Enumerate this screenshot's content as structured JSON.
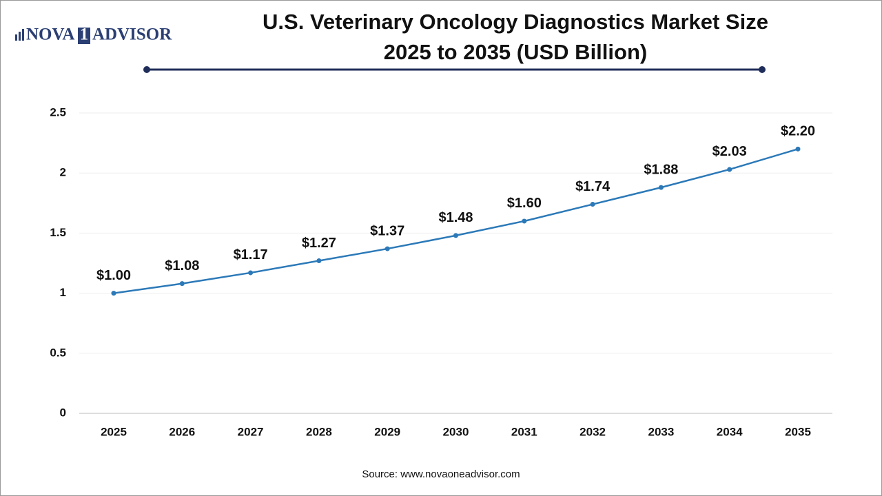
{
  "logo": [
    "NOVA",
    "1",
    "ADVISOR"
  ],
  "chart_data": {
    "type": "line",
    "title": [
      "U.S. Veterinary Oncology Diagnostics Market Size",
      "2025 to 2035 (USD Billion)"
    ],
    "categories": [
      "2025",
      "2026",
      "2027",
      "2028",
      "2029",
      "2030",
      "2031",
      "2032",
      "2033",
      "2034",
      "2035"
    ],
    "values": [
      1.0,
      1.08,
      1.17,
      1.27,
      1.37,
      1.48,
      1.6,
      1.74,
      1.88,
      2.03,
      2.2
    ],
    "value_labels": [
      "$1.00",
      "$1.08",
      "$1.17",
      "$1.27",
      "$1.37",
      "$1.48",
      "$1.60",
      "$1.74",
      "$1.88",
      "$2.03",
      "$2.20"
    ],
    "color": "#2b79b8",
    "ylim": [
      0,
      2.5
    ],
    "yticks": [
      0,
      0.5,
      1,
      1.5,
      2,
      2.5
    ],
    "grid": true,
    "source": "Source: www.novaoneadvisor.com"
  }
}
